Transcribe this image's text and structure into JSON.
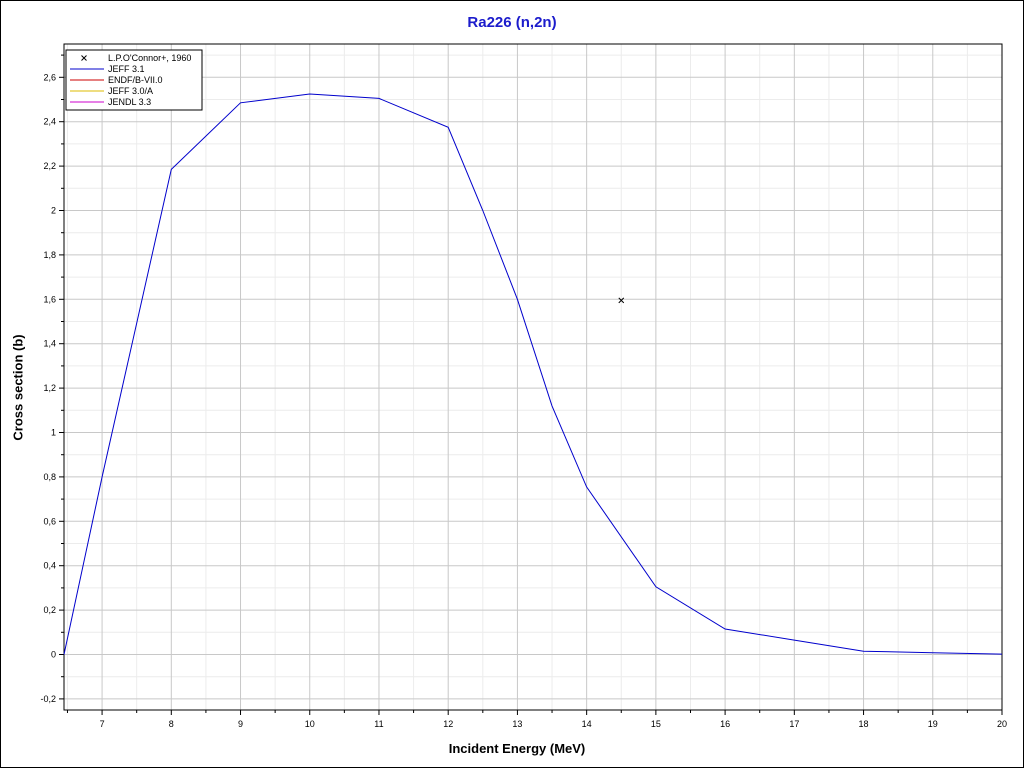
{
  "chart_data": {
    "type": "line",
    "title": "Ra226 (n,2n)",
    "xlabel": "Incident Energy (MeV)",
    "ylabel": "Cross section (b)",
    "xlim": [
      6.45,
      20
    ],
    "ylim": [
      -0.25,
      2.75
    ],
    "x_ticks": [
      7,
      8,
      9,
      10,
      11,
      12,
      13,
      14,
      15,
      16,
      17,
      18,
      19,
      20
    ],
    "x_tick_labels": [
      "7",
      "8",
      "9",
      "10",
      "11",
      "12",
      "13",
      "14",
      "15",
      "16",
      "17",
      "18",
      "19",
      "20"
    ],
    "y_ticks": [
      -0.2,
      0,
      0.2,
      0.4,
      0.6,
      0.8,
      1,
      1.2,
      1.4,
      1.6,
      1.8,
      2,
      2.2,
      2.4,
      2.6
    ],
    "y_tick_labels": [
      "-0,2",
      "0",
      "0,2",
      "0,4",
      "0,6",
      "0,8",
      "1",
      "1,2",
      "1,4",
      "1,6",
      "1,8",
      "2",
      "2,2",
      "2,4",
      "2,6"
    ],
    "grid": true,
    "legend_position": "top-left",
    "series": [
      {
        "name": "L.P.O'Connor+, 1960",
        "kind": "marker",
        "color": "#000000",
        "x": [
          14.5
        ],
        "y": [
          1.595
        ]
      },
      {
        "name": "JEFF 3.1",
        "kind": "line",
        "color": "#0000cc",
        "x": [
          6.45,
          7,
          8,
          9,
          10,
          11,
          12,
          12.5,
          13,
          13.5,
          14,
          15,
          16,
          17,
          18,
          19,
          20
        ],
        "y": [
          0.0,
          0.8,
          2.185,
          2.485,
          2.525,
          2.505,
          2.375,
          2.0,
          1.6,
          1.12,
          0.755,
          0.305,
          0.115,
          0.065,
          0.015,
          0.008,
          0.002
        ]
      },
      {
        "name": "ENDF/B-VII.0",
        "kind": "line",
        "color": "#cc0000",
        "x": [],
        "y": []
      },
      {
        "name": "JEFF 3.0/A",
        "kind": "line",
        "color": "#ddbb00",
        "x": [],
        "y": []
      },
      {
        "name": "JENDL 3.3",
        "kind": "line",
        "color": "#cc00cc",
        "x": [],
        "y": []
      }
    ]
  }
}
